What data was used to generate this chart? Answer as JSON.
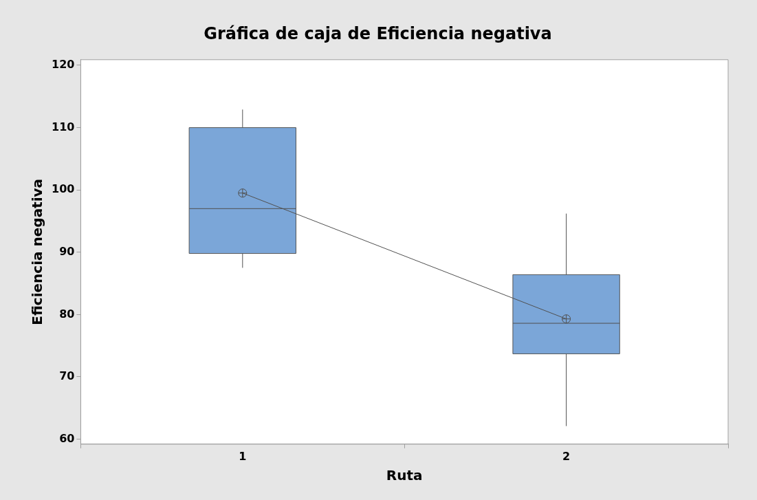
{
  "chart_data": {
    "type": "box",
    "title": "Gráfica de caja de Eficiencia negativa",
    "xlabel": "Ruta",
    "ylabel": "Eficiencia negativa",
    "categories": [
      "1",
      "2"
    ],
    "color": "#7ba6d8",
    "boxes": [
      {
        "low": 87.5,
        "q1": 89.8,
        "median": 97,
        "q3": 110,
        "high": 112.9
      },
      {
        "low": 62.1,
        "q1": 73.7,
        "median": 78.6,
        "q3": 86.4,
        "high": 96.2
      }
    ],
    "series": [
      {
        "type": "line",
        "color": "#505050",
        "values": [
          99.5,
          79.3
        ]
      }
    ],
    "marker": "circle",
    "ylim": [
      59.2,
      120.9
    ],
    "yticks": [
      60,
      70,
      80,
      90,
      100,
      110,
      120
    ],
    "grid": false
  }
}
